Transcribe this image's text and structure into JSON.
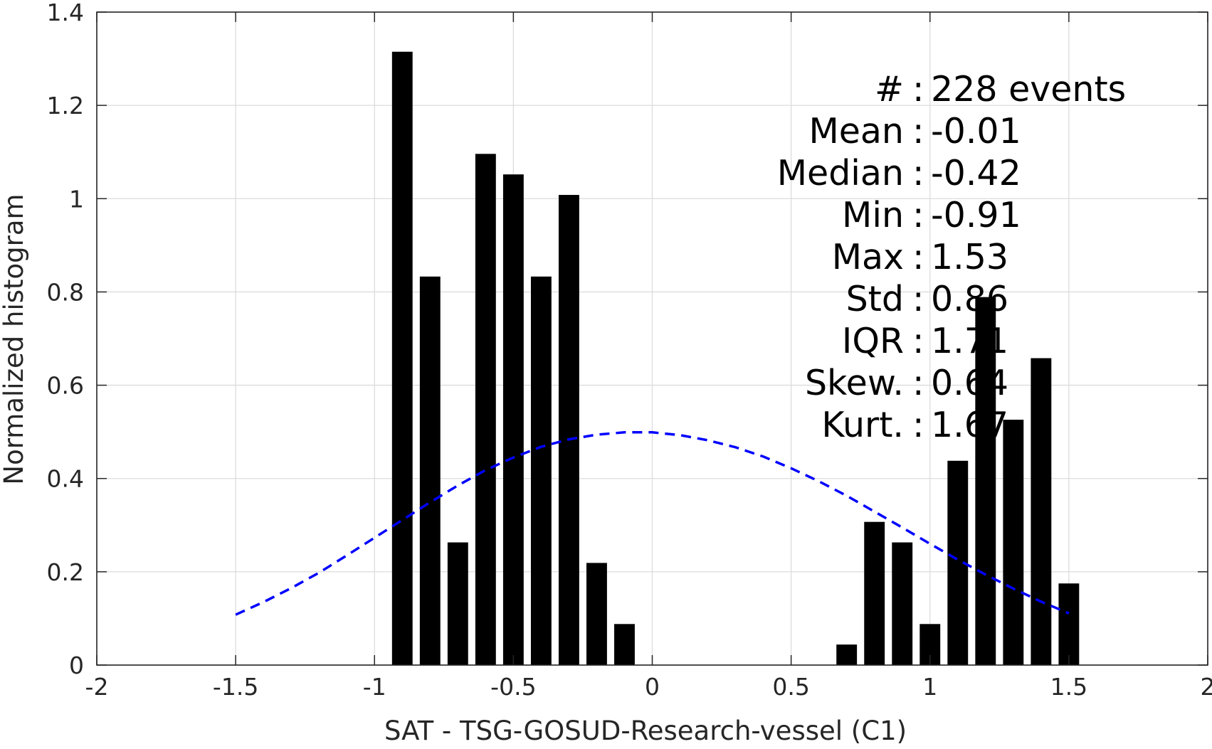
{
  "chart_data": {
    "type": "bar",
    "xlabel": "SAT - TSG-GOSUD-Research-vessel (C1)",
    "ylabel": "Normalized histogram",
    "xlim": [
      -2,
      2
    ],
    "ylim": [
      0,
      1.4
    ],
    "xticks": [
      -2,
      -1.5,
      -1,
      -0.5,
      0,
      0.5,
      1,
      1.5,
      2
    ],
    "xtick_labels": [
      "-2",
      "-1.5",
      "-1",
      "-0.5",
      "0",
      "0.5",
      "1",
      "1.5",
      "2"
    ],
    "yticks": [
      0,
      0.2,
      0.4,
      0.6,
      0.8,
      1.0,
      1.2,
      1.4
    ],
    "ytick_labels": [
      "0",
      "0.2",
      "0.4",
      "0.6",
      "0.8",
      "1",
      "1.2",
      "1.4"
    ],
    "grid": true,
    "bar_color": "#000000",
    "bars": {
      "x": [
        -0.9,
        -0.8,
        -0.7,
        -0.6,
        -0.5,
        -0.4,
        -0.3,
        -0.2,
        -0.1,
        0.7,
        0.8,
        0.9,
        1.0,
        1.1,
        1.2,
        1.3,
        1.4,
        1.5
      ],
      "values": [
        1.315,
        0.833,
        0.263,
        1.096,
        1.052,
        0.833,
        1.008,
        0.219,
        0.088,
        0.044,
        0.307,
        0.263,
        0.088,
        0.438,
        0.789,
        0.526,
        0.658,
        0.175
      ]
    },
    "fit_curve": {
      "style": "dashed",
      "color": "#0000ff",
      "x": [
        -1.5,
        -1.4,
        -1.3,
        -1.2,
        -1.1,
        -1.0,
        -0.9,
        -0.8,
        -0.7,
        -0.6,
        -0.5,
        -0.4,
        -0.3,
        -0.2,
        -0.1,
        0.0,
        0.1,
        0.2,
        0.3,
        0.4,
        0.5,
        0.6,
        0.7,
        0.8,
        0.9,
        1.0,
        1.1,
        1.2,
        1.3,
        1.4,
        1.5
      ],
      "y": [
        0.108,
        0.135,
        0.165,
        0.198,
        0.235,
        0.273,
        0.311,
        0.349,
        0.385,
        0.418,
        0.445,
        0.468,
        0.484,
        0.494,
        0.499,
        0.499,
        0.493,
        0.482,
        0.467,
        0.447,
        0.422,
        0.394,
        0.363,
        0.329,
        0.295,
        0.26,
        0.226,
        0.194,
        0.164,
        0.136,
        0.111
      ]
    },
    "stats": [
      {
        "label": "#  ",
        "value": "228 events"
      },
      {
        "label": "Mean",
        "value": "-0.01"
      },
      {
        "label": "Median",
        "value": "-0.42"
      },
      {
        "label": "Min",
        "value": "-0.91"
      },
      {
        "label": "Max",
        "value": "1.53"
      },
      {
        "label": "Std",
        "value": "0.86"
      },
      {
        "label": "IQR",
        "value": "1.71"
      },
      {
        "label": "Skew.",
        "value": "0.64"
      },
      {
        "label": "Kurt.",
        "value": "1.67"
      }
    ]
  }
}
